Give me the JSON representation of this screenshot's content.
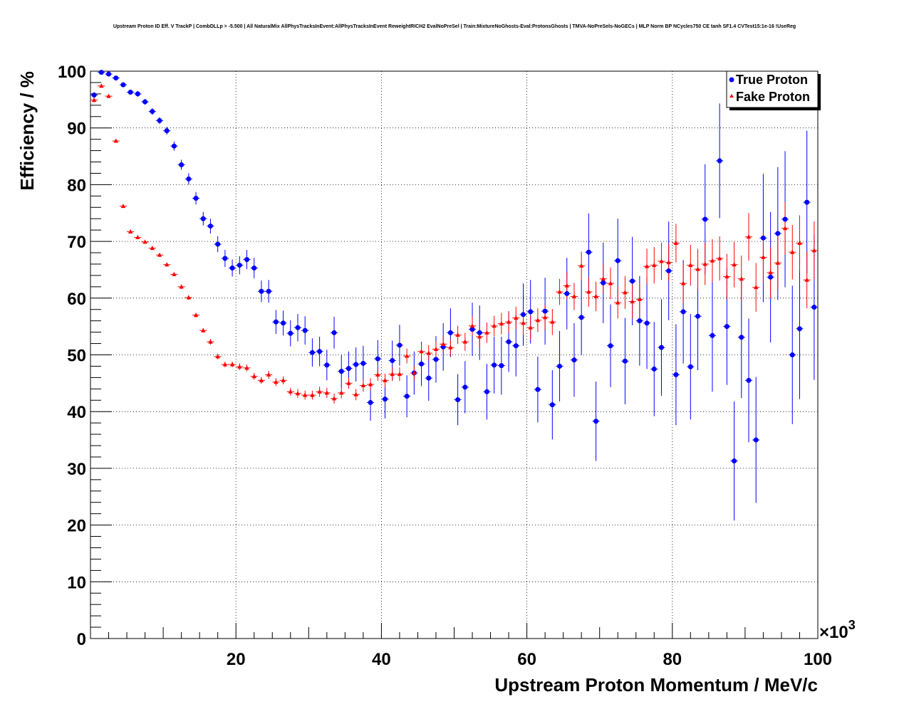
{
  "chart_data": {
    "type": "scatter",
    "title": "Upstream Proton ID Eff. V TrackP | CombDLLp > -5.500 | All NaturalMix AllPhysTracksInEvent:AllPhysTracksInEvent ReweightRICH2 EvalNoPreSel | Train:MixtureNoGhosts-Eval:ProtonsGhosts | TMVA-NoPreSels-NoGECs | MLP Norm BP NCycles750 CE tanh SF1.4 CVTest15:1e-16 !UseReg",
    "xlabel": "Upstream Proton Momentum / MeV/c",
    "ylabel": "Efficiency / %",
    "x_multiplier": "×10",
    "x_multiplier_exp": "3",
    "xlim": [
      0,
      100
    ],
    "ylim": [
      0,
      100
    ],
    "xticks": [
      20,
      40,
      60,
      80,
      100
    ],
    "yticks": [
      0,
      10,
      20,
      30,
      40,
      50,
      60,
      70,
      80,
      90,
      100
    ],
    "grid": true,
    "legend_position": "top-right",
    "series": [
      {
        "name": "True Proton",
        "color": "#0000ff",
        "marker": "circle",
        "x": [
          0.5,
          1.5,
          2.5,
          3.5,
          4.5,
          5.5,
          6.5,
          7.5,
          8.5,
          9.5,
          10.5,
          11.5,
          12.5,
          13.5,
          14.5,
          15.5,
          16.5,
          17.5,
          18.5,
          19.5,
          20.5,
          21.5,
          22.5,
          23.5,
          24.5,
          25.5,
          26.5,
          27.5,
          28.5,
          29.5,
          30.5,
          31.5,
          32.5,
          33.5,
          34.5,
          35.5,
          36.5,
          37.5,
          38.5,
          39.5,
          40.5,
          41.5,
          42.5,
          43.5,
          44.5,
          45.5,
          46.5,
          47.5,
          48.5,
          49.5,
          50.5,
          51.5,
          52.5,
          53.5,
          54.5,
          55.5,
          56.5,
          57.5,
          58.5,
          59.5,
          60.5,
          61.5,
          62.5,
          63.5,
          64.5,
          65.5,
          66.5,
          67.5,
          68.5,
          69.5,
          70.5,
          71.5,
          72.5,
          73.5,
          74.5,
          75.5,
          76.5,
          77.5,
          78.5,
          79.5,
          80.5,
          81.5,
          82.5,
          83.5,
          84.5,
          85.5,
          86.5,
          87.5,
          88.5,
          89.5,
          90.5,
          91.5,
          92.5,
          93.5,
          94.5,
          95.5,
          96.5,
          97.5,
          98.5,
          99.5
        ],
        "y": [
          95.8,
          99.8,
          99.5,
          98.8,
          97.6,
          96.3,
          96.0,
          94.6,
          92.9,
          91.3,
          89.5,
          86.8,
          83.5,
          81.0,
          77.6,
          74.0,
          72.7,
          69.5,
          67.0,
          65.3,
          65.8,
          66.8,
          65.3,
          61.2,
          61.2,
          55.8,
          55.6,
          53.8,
          54.8,
          54.3,
          50.4,
          50.6,
          48.2,
          53.9,
          47.1,
          47.6,
          48.3,
          48.5,
          41.6,
          49.3,
          42.2,
          49.0,
          51.7,
          42.7,
          46.8,
          48.4,
          45.9,
          49.2,
          51.4,
          53.9,
          42.1,
          44.3,
          54.5,
          53.9,
          43.5,
          48.2,
          48.1,
          52.3,
          51.6,
          57.1,
          57.6,
          43.9,
          57.7,
          41.2,
          48.0,
          60.8,
          49.1,
          56.6,
          68.1,
          38.3,
          62.7,
          51.6,
          66.6,
          48.9,
          63.0,
          56.0,
          55.6,
          47.5,
          51.3,
          64.8,
          46.5,
          57.6,
          47.9,
          56.8,
          73.9,
          53.4,
          84.2,
          55.0,
          31.3,
          53.1,
          45.5,
          35.0,
          70.6,
          63.7,
          71.4,
          73.9,
          50.0,
          54.6,
          76.9,
          58.4
        ],
        "yerr": [
          0.5,
          0.3,
          0.3,
          0.3,
          0.4,
          0.4,
          0.5,
          0.5,
          0.6,
          0.6,
          0.7,
          0.8,
          0.9,
          1.0,
          1.1,
          1.2,
          1.3,
          1.4,
          1.5,
          1.5,
          1.6,
          1.7,
          1.8,
          1.9,
          2.0,
          2.1,
          2.2,
          2.3,
          2.4,
          2.5,
          2.5,
          2.6,
          2.7,
          2.8,
          2.9,
          3.0,
          3.0,
          3.1,
          3.2,
          3.3,
          3.4,
          3.5,
          3.6,
          3.7,
          3.8,
          3.9,
          4.0,
          4.1,
          4.2,
          4.3,
          4.5,
          4.6,
          4.7,
          4.8,
          4.9,
          5.0,
          5.1,
          5.3,
          5.4,
          5.5,
          5.6,
          5.8,
          5.9,
          6.1,
          6.2,
          6.3,
          6.5,
          6.6,
          6.8,
          7.0,
          7.1,
          7.3,
          7.4,
          7.6,
          7.8,
          7.9,
          8.1,
          8.3,
          8.5,
          8.7,
          8.9,
          9.1,
          9.3,
          9.5,
          9.7,
          9.9,
          10.1,
          10.3,
          10.5,
          10.7,
          10.9,
          11.1,
          11.3,
          11.5,
          11.7,
          12.0,
          12.2,
          12.4,
          12.6,
          12.8
        ]
      },
      {
        "name": "Fake Proton",
        "color": "#ff0000",
        "marker": "triangle",
        "x": [
          0.5,
          1.5,
          2.5,
          3.5,
          4.5,
          5.5,
          6.5,
          7.5,
          8.5,
          9.5,
          10.5,
          11.5,
          12.5,
          13.5,
          14.5,
          15.5,
          16.5,
          17.5,
          18.5,
          19.5,
          20.5,
          21.5,
          22.5,
          23.5,
          24.5,
          25.5,
          26.5,
          27.5,
          28.5,
          29.5,
          30.5,
          31.5,
          32.5,
          33.5,
          34.5,
          35.5,
          36.5,
          37.5,
          38.5,
          39.5,
          40.5,
          41.5,
          42.5,
          43.5,
          44.5,
          45.5,
          46.5,
          47.5,
          48.5,
          49.5,
          50.5,
          51.5,
          52.5,
          53.5,
          54.5,
          55.5,
          56.5,
          57.5,
          58.5,
          59.5,
          60.5,
          61.5,
          62.5,
          63.5,
          64.5,
          65.5,
          66.5,
          67.5,
          68.5,
          69.5,
          70.5,
          71.5,
          72.5,
          73.5,
          74.5,
          75.5,
          76.5,
          77.5,
          78.5,
          79.5,
          80.5,
          81.5,
          82.5,
          83.5,
          84.5,
          85.5,
          86.5,
          87.5,
          88.5,
          89.5,
          90.5,
          91.5,
          92.5,
          93.5,
          94.5,
          95.5,
          96.5,
          97.5,
          98.5,
          99.5
        ],
        "y": [
          94.9,
          97.4,
          95.6,
          87.7,
          76.2,
          71.7,
          70.7,
          69.9,
          68.8,
          67.6,
          65.9,
          64.2,
          62.0,
          60.1,
          57.0,
          54.3,
          52.3,
          49.7,
          48.3,
          48.3,
          47.9,
          47.7,
          46.2,
          45.5,
          46.5,
          45.2,
          45.5,
          43.5,
          43.2,
          42.9,
          42.9,
          43.5,
          43.3,
          42.3,
          43.3,
          45.0,
          43.0,
          44.6,
          44.8,
          46.5,
          45.5,
          46.6,
          46.6,
          49.8,
          46.8,
          50.6,
          50.3,
          51.0,
          51.9,
          51.3,
          53.5,
          52.3,
          55.1,
          53.2,
          53.9,
          55.1,
          55.5,
          55.8,
          56.5,
          55.6,
          54.8,
          56.1,
          56.6,
          55.8,
          61.1,
          62.2,
          60.3,
          65.7,
          61.1,
          60.3,
          63.4,
          62.6,
          59.2,
          61.0,
          59.4,
          59.8,
          65.6,
          65.8,
          66.5,
          66.3,
          69.7,
          62.6,
          65.8,
          65.1,
          66.0,
          66.6,
          67.0,
          63.8,
          65.9,
          63.4,
          70.8,
          61.9,
          67.2,
          64.5,
          66.2,
          72.3,
          68.1,
          69.7,
          63.2,
          68.4
        ],
        "yerr": [
          0.4,
          0.3,
          0.3,
          0.3,
          0.3,
          0.3,
          0.3,
          0.3,
          0.3,
          0.3,
          0.3,
          0.3,
          0.4,
          0.4,
          0.4,
          0.4,
          0.5,
          0.5,
          0.5,
          0.5,
          0.6,
          0.6,
          0.6,
          0.6,
          0.7,
          0.7,
          0.7,
          0.7,
          0.8,
          0.8,
          0.8,
          0.9,
          0.9,
          0.9,
          1.0,
          1.0,
          1.0,
          1.1,
          1.1,
          1.1,
          1.2,
          1.2,
          1.2,
          1.3,
          1.3,
          1.4,
          1.4,
          1.4,
          1.5,
          1.5,
          1.6,
          1.6,
          1.7,
          1.7,
          1.8,
          1.8,
          1.9,
          1.9,
          2.0,
          2.0,
          2.1,
          2.1,
          2.2,
          2.3,
          2.3,
          2.4,
          2.4,
          2.5,
          2.6,
          2.6,
          2.7,
          2.8,
          2.8,
          2.9,
          3.0,
          3.0,
          3.1,
          3.2,
          3.3,
          3.3,
          3.4,
          3.5,
          3.6,
          3.6,
          3.7,
          3.8,
          3.9,
          4.0,
          4.0,
          4.1,
          4.2,
          4.3,
          4.4,
          4.5,
          4.6,
          4.7,
          4.8,
          4.9,
          5.0,
          5.1
        ]
      }
    ]
  }
}
